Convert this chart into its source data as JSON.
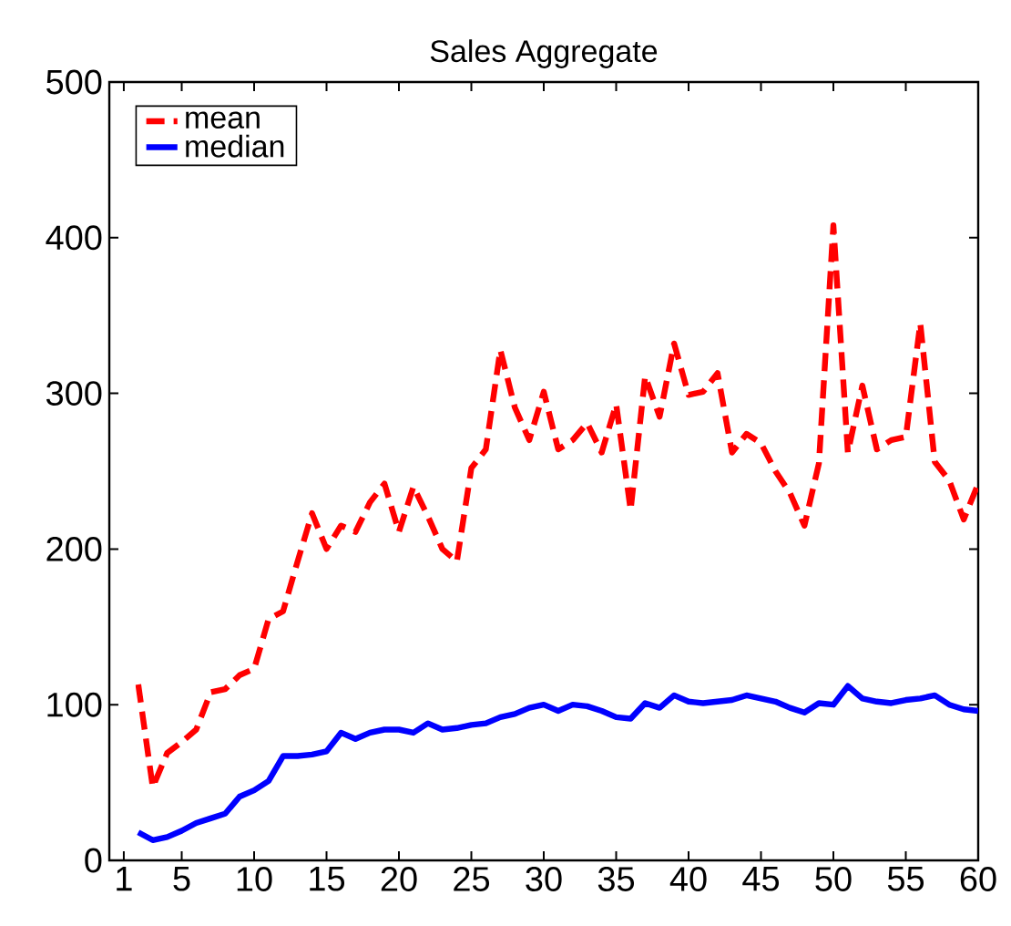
{
  "chart_data": {
    "type": "line",
    "title": "Sales Aggregate",
    "x": [
      2,
      3,
      4,
      5,
      6,
      7,
      8,
      9,
      10,
      11,
      12,
      13,
      14,
      15,
      16,
      17,
      18,
      19,
      20,
      21,
      22,
      23,
      24,
      25,
      26,
      27,
      28,
      29,
      30,
      31,
      32,
      33,
      34,
      35,
      36,
      37,
      38,
      39,
      40,
      41,
      42,
      43,
      44,
      45,
      46,
      47,
      48,
      49,
      50,
      51,
      52,
      53,
      54,
      55,
      56,
      57,
      58,
      59,
      60
    ],
    "series": [
      {
        "name": "mean",
        "color": "#ff0000",
        "line_style": "dashed",
        "values": [
          113,
          47,
          69,
          76,
          84,
          108,
          110,
          119,
          123,
          155,
          160,
          192,
          223,
          200,
          215,
          211,
          230,
          242,
          211,
          240,
          221,
          200,
          192,
          252,
          264,
          328,
          291,
          270,
          301,
          264,
          270,
          281,
          262,
          293,
          225,
          311,
          285,
          332,
          299,
          301,
          313,
          262,
          274,
          268,
          250,
          236,
          215,
          255,
          408,
          262,
          305,
          264,
          270,
          272,
          345,
          256,
          244,
          219,
          242
        ]
      },
      {
        "name": "median",
        "color": "#0000ff",
        "line_style": "solid",
        "values": [
          18,
          13,
          15,
          19,
          24,
          27,
          30,
          41,
          45,
          51,
          67,
          67,
          68,
          70,
          82,
          78,
          82,
          84,
          84,
          82,
          88,
          84,
          85,
          87,
          88,
          92,
          94,
          98,
          100,
          96,
          100,
          99,
          96,
          92,
          91,
          101,
          98,
          106,
          102,
          101,
          102,
          103,
          106,
          104,
          102,
          98,
          95,
          101,
          100,
          112,
          104,
          102,
          101,
          103,
          104,
          106,
          100,
          97,
          96
        ]
      }
    ],
    "xlim": [
      0,
      60
    ],
    "ylim": [
      0,
      500
    ],
    "xticks": [
      1,
      5,
      10,
      15,
      20,
      25,
      30,
      35,
      40,
      45,
      50,
      55,
      60
    ],
    "yticks": [
      0,
      100,
      200,
      300,
      400,
      500
    ],
    "grid": false,
    "legend": "top left",
    "marker": "none"
  }
}
